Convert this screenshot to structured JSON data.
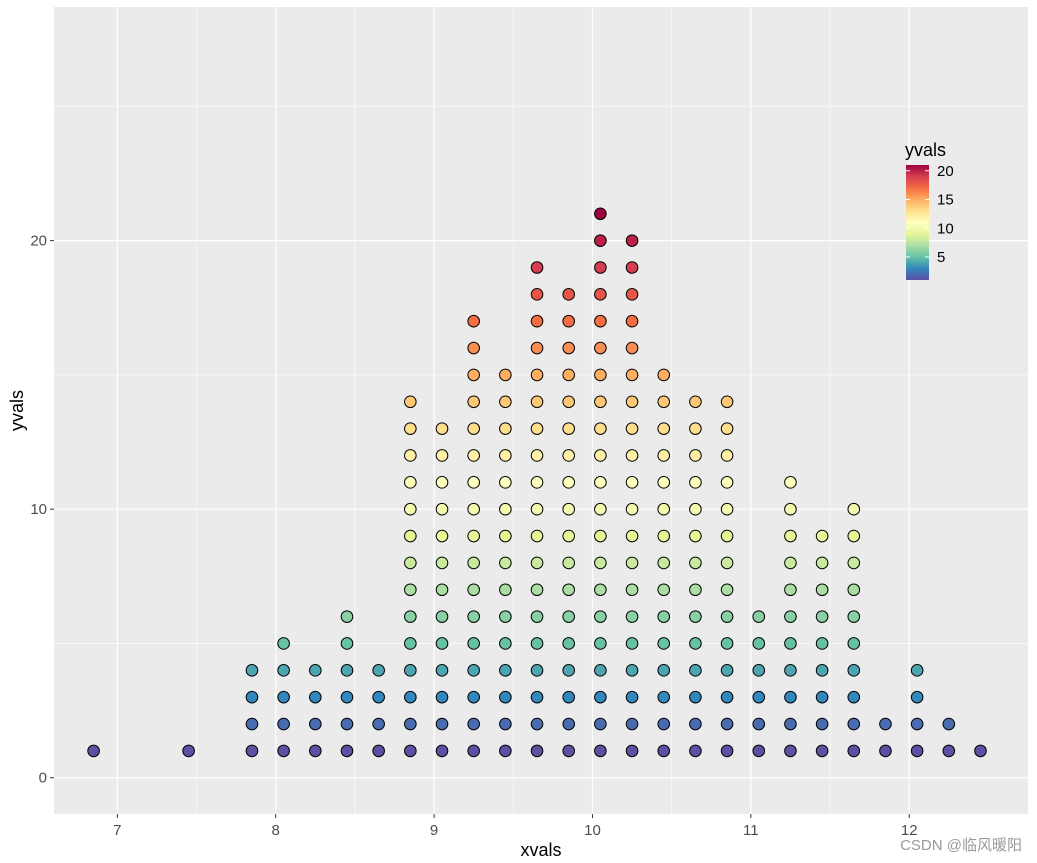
{
  "chart_data": {
    "type": "scatter",
    "xlabel": "xvals",
    "ylabel": "yvals",
    "xlim": [
      6.6,
      12.75
    ],
    "ylim": [
      -1.35,
      28.7
    ],
    "x_ticks": [
      7,
      8,
      9,
      10,
      11,
      12
    ],
    "x_tick_labels": [
      "7",
      "8",
      "9",
      "10",
      "11",
      "12"
    ],
    "y_ticks": [
      0,
      10,
      20
    ],
    "y_tick_labels": [
      "0",
      "10",
      "20"
    ],
    "grid": true,
    "legend": {
      "title": "yvals",
      "position": "right",
      "type": "colorbar",
      "palette": "Spectral (reversed)",
      "range": [
        1,
        21
      ],
      "ticks": [
        5,
        10,
        15,
        20
      ],
      "tick_labels": [
        "5",
        "10",
        "15",
        "20"
      ]
    },
    "columns": [
      {
        "x": 6.85,
        "max_y": 1
      },
      {
        "x": 7.45,
        "max_y": 1
      },
      {
        "x": 7.85,
        "max_y": 4
      },
      {
        "x": 8.05,
        "max_y": 5
      },
      {
        "x": 8.25,
        "max_y": 4
      },
      {
        "x": 8.45,
        "max_y": 6
      },
      {
        "x": 8.65,
        "max_y": 4
      },
      {
        "x": 8.85,
        "max_y": 14
      },
      {
        "x": 9.05,
        "max_y": 13
      },
      {
        "x": 9.25,
        "max_y": 17
      },
      {
        "x": 9.45,
        "max_y": 15
      },
      {
        "x": 9.65,
        "max_y": 19
      },
      {
        "x": 9.85,
        "max_y": 18
      },
      {
        "x": 10.05,
        "max_y": 21
      },
      {
        "x": 10.25,
        "max_y": 20
      },
      {
        "x": 10.45,
        "max_y": 15
      },
      {
        "x": 10.65,
        "max_y": 14
      },
      {
        "x": 10.85,
        "max_y": 14
      },
      {
        "x": 11.05,
        "max_y": 6
      },
      {
        "x": 11.25,
        "max_y": 11
      },
      {
        "x": 11.45,
        "max_y": 9
      },
      {
        "x": 11.65,
        "max_y": 10
      },
      {
        "x": 11.85,
        "max_y": 2
      },
      {
        "x": 12.05,
        "max_y": 4
      },
      {
        "x": 12.25,
        "max_y": 2
      },
      {
        "x": 12.45,
        "max_y": 1
      }
    ],
    "point_fill_palette": [
      "#5e4fa2",
      "#3288bd",
      "#66c2a5",
      "#abdda4",
      "#e6f598",
      "#ffffbf",
      "#fee08b",
      "#fdae61",
      "#f46d43",
      "#d53e4f",
      "#9e0142"
    ],
    "point_stroke": "#000000"
  },
  "watermark": "CSDN @临风暖阳",
  "colors": {
    "panel_background": "#ebebeb",
    "grid_line": "#ffffff"
  }
}
